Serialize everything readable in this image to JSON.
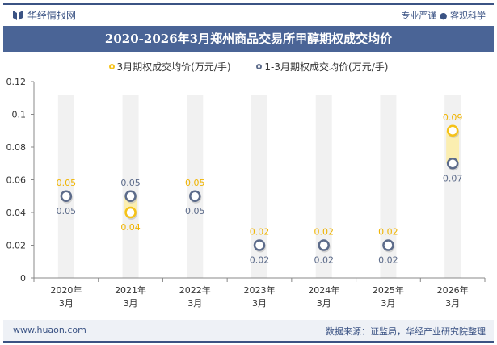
{
  "header": {
    "brand": "华经情报网",
    "slogan": "专业严谨 ● 客观科学",
    "title": "2020-2026年3月郑州商品交易所甲醇期权成交均价"
  },
  "footer": {
    "website": "www.huaon.com",
    "source": "数据来源：证监局，华经产业研究院整理"
  },
  "colors": {
    "series1": "#f5c218",
    "series2": "#5c6b8a",
    "title_bg": "#4a6496"
  },
  "chart_data": {
    "type": "line",
    "title": "2020-2026年3月郑州商品交易所甲醇期权成交均价",
    "categories": [
      "2020年\n3月",
      "2021年\n3月",
      "2022年\n3月",
      "2023年\n3月",
      "2024年\n3月",
      "2025年\n3月",
      "2026年\n3月"
    ],
    "series": [
      {
        "name": "3月期权成交均价(万元/手)",
        "values": [
          0.05,
          0.04,
          0.05,
          0.02,
          0.02,
          0.02,
          0.09
        ],
        "labels": [
          "0.05",
          "0.04",
          "0.05",
          "0.02",
          "0.02",
          "0.02",
          "0.09"
        ]
      },
      {
        "name": "1-3月期权成交均价(万元/手)",
        "values": [
          0.05,
          0.05,
          0.05,
          0.02,
          0.02,
          0.02,
          0.07
        ],
        "labels": [
          "0.05",
          "0.05",
          "0.05",
          "0.02",
          "0.02",
          "0.02",
          "0.07"
        ]
      }
    ],
    "yticks": [
      "0",
      "0.02",
      "0.04",
      "0.06",
      "0.08",
      "0.1",
      "0.12"
    ],
    "ylim": [
      0,
      0.12
    ],
    "grid": false,
    "legend": "top"
  }
}
